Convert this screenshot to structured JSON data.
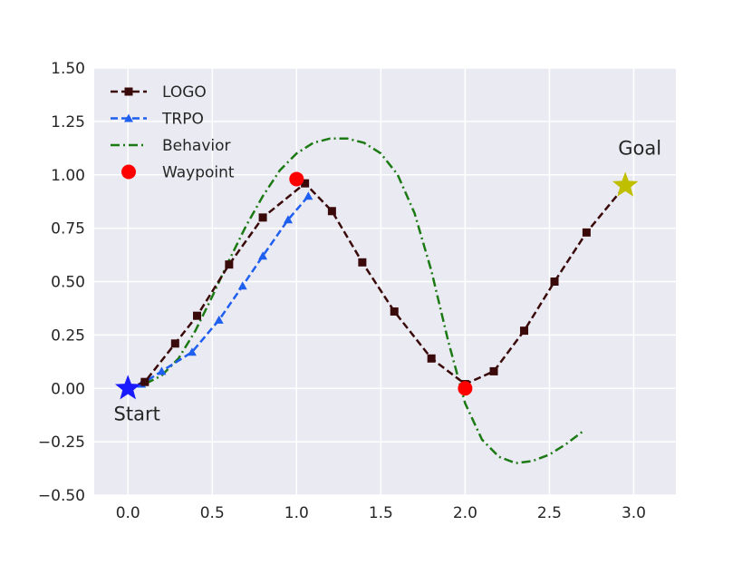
{
  "chart_data": {
    "type": "line",
    "title": "",
    "xlabel": "",
    "ylabel": "",
    "xlim": [
      -0.2,
      3.25
    ],
    "ylim": [
      -0.5,
      1.5
    ],
    "xticks": [
      0.0,
      0.5,
      1.0,
      1.5,
      2.0,
      2.5,
      3.0
    ],
    "xtick_labels": [
      "0.0",
      "0.5",
      "1.0",
      "1.5",
      "2.0",
      "2.5",
      "3.0"
    ],
    "yticks": [
      -0.5,
      -0.25,
      0.0,
      0.25,
      0.5,
      0.75,
      1.0,
      1.25,
      1.5
    ],
    "ytick_labels": [
      "−0.50",
      "−0.25",
      "0.00",
      "0.25",
      "0.50",
      "0.75",
      "1.00",
      "1.25",
      "1.50"
    ],
    "grid": true,
    "legend_position": "top-left",
    "series": [
      {
        "name": "LOGO",
        "color": "#3a0a0a",
        "line_style": "dashed",
        "marker": "square",
        "x": [
          0.0,
          0.1,
          0.28,
          0.41,
          0.6,
          0.8,
          1.05,
          1.21,
          1.39,
          1.58,
          1.8,
          2.0,
          2.17,
          2.35,
          2.53,
          2.72,
          2.95
        ],
        "y": [
          0.0,
          0.03,
          0.21,
          0.34,
          0.58,
          0.8,
          0.96,
          0.83,
          0.59,
          0.36,
          0.14,
          0.02,
          0.08,
          0.27,
          0.5,
          0.73,
          0.95
        ]
      },
      {
        "name": "TRPO",
        "color": "#1f5ff0",
        "line_style": "dashed",
        "marker": "triangle",
        "x": [
          0.0,
          0.08,
          0.2,
          0.38,
          0.54,
          0.68,
          0.8,
          0.95,
          1.07
        ],
        "y": [
          0.0,
          0.02,
          0.08,
          0.17,
          0.32,
          0.48,
          0.62,
          0.79,
          0.9
        ]
      },
      {
        "name": "Behavior",
        "color": "#1c7a14",
        "line_style": "dashdot",
        "marker": "none",
        "x": [
          0.0,
          0.1,
          0.2,
          0.3,
          0.4,
          0.5,
          0.6,
          0.7,
          0.8,
          0.9,
          1.0,
          1.1,
          1.2,
          1.3,
          1.4,
          1.5,
          1.6,
          1.7,
          1.8,
          1.9,
          2.0,
          2.1,
          2.2,
          2.3,
          2.4,
          2.5,
          2.6,
          2.7
        ],
        "y": [
          0.0,
          0.02,
          0.06,
          0.14,
          0.27,
          0.43,
          0.6,
          0.76,
          0.9,
          1.02,
          1.1,
          1.15,
          1.17,
          1.17,
          1.15,
          1.1,
          1.0,
          0.82,
          0.55,
          0.22,
          -0.07,
          -0.24,
          -0.32,
          -0.35,
          -0.34,
          -0.31,
          -0.26,
          -0.2
        ]
      },
      {
        "name": "Waypoint",
        "color": "#ff0000",
        "line_style": "none",
        "marker": "circle",
        "x": [
          1.0,
          2.0
        ],
        "y": [
          0.98,
          0.0
        ]
      }
    ],
    "annotations": [
      {
        "text": "Start",
        "x": 0.0,
        "y": 0.0,
        "marker": "star",
        "color": "#1a1aff"
      },
      {
        "text": "Goal",
        "x": 2.95,
        "y": 0.95,
        "marker": "star",
        "color": "#bfbf00"
      }
    ]
  }
}
